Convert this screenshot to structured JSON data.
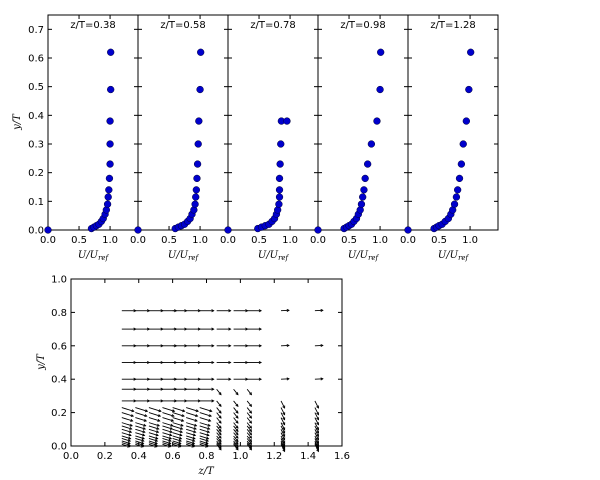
{
  "chart_data": [
    {
      "type": "scatter",
      "role": "profile-panels",
      "ylabel": "y/T",
      "xlabel": "U/U_ref",
      "xlim": [
        0,
        1.45
      ],
      "ylim": [
        0,
        0.75
      ],
      "xticks": [
        "0.0",
        "0.5",
        "1.0"
      ],
      "yticks": [
        "0.0",
        "0.1",
        "0.2",
        "0.3",
        "0.4",
        "0.5",
        "0.6",
        "0.7"
      ],
      "marker_color": "#0000cc",
      "panels": [
        {
          "title": "z/T=0.38",
          "x": [
            0.0,
            0.7,
            0.74,
            0.78,
            0.82,
            0.86,
            0.89,
            0.92,
            0.94,
            0.96,
            0.97,
            0.98,
            0.99,
            1.0,
            1.0,
            1.0,
            1.01,
            1.01
          ],
          "y": [
            0.0,
            0.005,
            0.01,
            0.015,
            0.02,
            0.03,
            0.04,
            0.055,
            0.07,
            0.09,
            0.115,
            0.14,
            0.18,
            0.23,
            0.3,
            0.38,
            0.49,
            0.62
          ]
        },
        {
          "title": "z/T=0.58",
          "x": [
            0.0,
            0.6,
            0.65,
            0.7,
            0.75,
            0.8,
            0.84,
            0.87,
            0.9,
            0.92,
            0.93,
            0.94,
            0.95,
            0.96,
            0.97,
            0.98,
            1.0,
            1.01
          ],
          "y": [
            0.0,
            0.005,
            0.01,
            0.015,
            0.02,
            0.03,
            0.04,
            0.055,
            0.07,
            0.09,
            0.115,
            0.14,
            0.18,
            0.23,
            0.3,
            0.38,
            0.49,
            0.62
          ]
        },
        {
          "title": "z/T=0.78",
          "x": [
            0.0,
            0.48,
            0.54,
            0.6,
            0.66,
            0.71,
            0.75,
            0.78,
            0.8,
            0.82,
            0.83,
            0.83,
            0.83,
            0.84,
            0.85,
            0.86,
            0.95
          ],
          "y": [
            0.0,
            0.005,
            0.01,
            0.015,
            0.02,
            0.03,
            0.04,
            0.055,
            0.07,
            0.09,
            0.115,
            0.14,
            0.18,
            0.23,
            0.3,
            0.38,
            0.38
          ]
        },
        {
          "title": "z/T=0.98",
          "x": [
            0.0,
            0.42,
            0.46,
            0.5,
            0.54,
            0.58,
            0.62,
            0.65,
            0.68,
            0.7,
            0.72,
            0.74,
            0.76,
            0.8,
            0.86,
            0.95,
            1.0,
            1.01
          ],
          "y": [
            0.0,
            0.005,
            0.01,
            0.015,
            0.02,
            0.03,
            0.04,
            0.055,
            0.07,
            0.09,
            0.115,
            0.14,
            0.18,
            0.23,
            0.3,
            0.38,
            0.49,
            0.62
          ]
        },
        {
          "title": "z/T=1.28",
          "x": [
            0.0,
            0.42,
            0.46,
            0.5,
            0.55,
            0.6,
            0.65,
            0.69,
            0.72,
            0.75,
            0.78,
            0.8,
            0.83,
            0.86,
            0.89,
            0.94,
            0.98,
            1.01
          ],
          "y": [
            0.0,
            0.005,
            0.01,
            0.015,
            0.02,
            0.03,
            0.04,
            0.055,
            0.07,
            0.09,
            0.115,
            0.14,
            0.18,
            0.23,
            0.3,
            0.38,
            0.49,
            0.62
          ]
        }
      ]
    },
    {
      "type": "quiver",
      "role": "vector-field",
      "xlabel": "z/T",
      "ylabel": "y/T",
      "xlim": [
        0.0,
        1.6
      ],
      "ylim": [
        0.0,
        1.0
      ],
      "xticks": [
        "0.0",
        "0.2",
        "0.4",
        "0.6",
        "0.8",
        "1.0",
        "1.2",
        "1.4",
        "1.6"
      ],
      "yticks": [
        "0.0",
        "0.2",
        "0.4",
        "0.6",
        "0.8",
        "1.0"
      ],
      "columns_z": [
        0.3,
        0.38,
        0.46,
        0.54,
        0.6,
        0.68,
        0.76,
        0.86,
        0.96,
        1.04,
        1.24,
        1.44
      ],
      "rows_y": [
        0.81,
        0.7,
        0.6,
        0.5,
        0.4,
        0.34,
        0.27,
        0.23,
        0.2,
        0.17,
        0.14,
        0.12,
        0.1,
        0.08,
        0.06,
        0.045,
        0.03,
        0.02,
        0.01
      ],
      "dominant_direction": "right"
    }
  ]
}
